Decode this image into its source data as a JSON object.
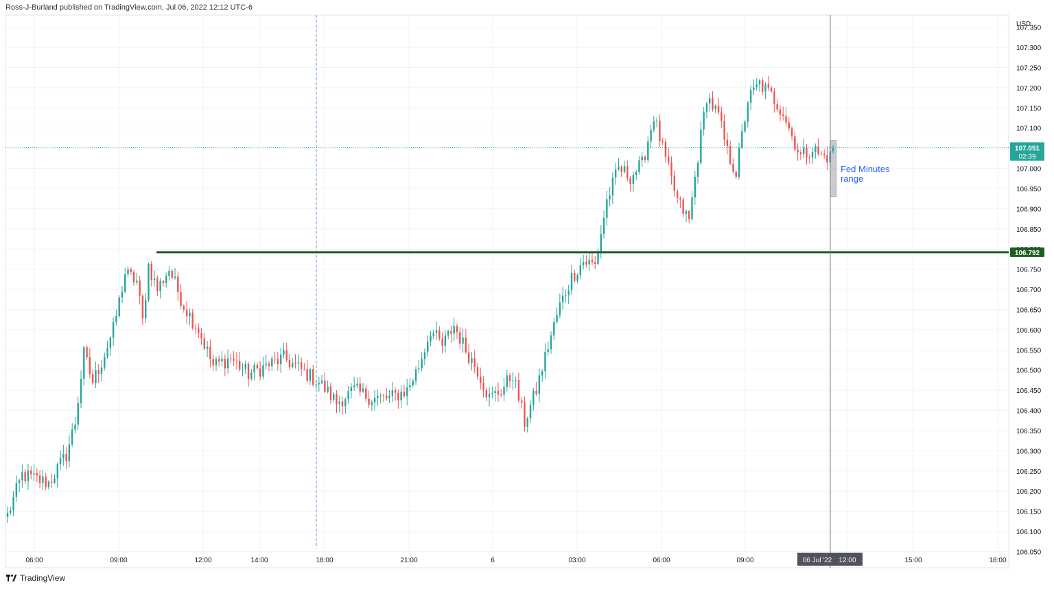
{
  "header": {
    "publisher_text": "Ross-J-Burland published on TradingView.com, Jul 06, 2022 12:12 UTC-6"
  },
  "footer": {
    "brand": "TradingView"
  },
  "colors": {
    "up": "#26a69a",
    "down": "#ef5350",
    "level_line": "#1b5e20",
    "current_price_line": "#26a69a",
    "grid": "#f0f3fa",
    "annotation_text": "#2962ff",
    "vertical_dashed": "#5b9bd5",
    "range_box": "#b2b5be",
    "crosshair": "#787b86"
  },
  "chart_data": {
    "type": "candlestick",
    "currency_label": "USD",
    "y_range": [
      106.01,
      107.38
    ],
    "y_ticks": [
      "107.350",
      "107.300",
      "107.250",
      "107.200",
      "107.150",
      "107.100",
      "107.050",
      "107.000",
      "106.950",
      "106.900",
      "106.850",
      "106.800",
      "106.750",
      "106.700",
      "106.650",
      "106.600",
      "106.550",
      "106.500",
      "106.450",
      "106.400",
      "106.350",
      "106.300",
      "106.250",
      "106.200",
      "106.150",
      "106.100",
      "106.050"
    ],
    "x_ticks": [
      "06:00",
      "09:00",
      "12:00",
      "14:00",
      "18:00",
      "21:00",
      "6",
      "03:00",
      "06:00",
      "09:00",
      "12:00",
      "15:00",
      "18:00"
    ],
    "crosshair_date_label": "06 Jul '22",
    "crosshair_time_label": "12:00",
    "current_price": {
      "value": "107.051",
      "countdown": "02:39"
    },
    "level_line": {
      "value": 106.792,
      "label": "106.792"
    },
    "annotation": {
      "line1": "Fed Minutes",
      "line2": "range",
      "range_low": 106.93,
      "range_high": 107.07
    },
    "keypoints": [
      [
        0,
        106.14
      ],
      [
        5,
        106.24
      ],
      [
        14,
        106.22
      ],
      [
        20,
        106.29
      ],
      [
        23,
        106.37
      ],
      [
        26,
        106.54
      ],
      [
        29,
        106.47
      ],
      [
        32,
        106.52
      ],
      [
        36,
        106.6
      ],
      [
        40,
        106.74
      ],
      [
        44,
        106.72
      ],
      [
        46,
        106.62
      ],
      [
        48,
        106.76
      ],
      [
        51,
        106.7
      ],
      [
        55,
        106.75
      ],
      [
        60,
        106.66
      ],
      [
        65,
        106.6
      ],
      [
        70,
        106.51
      ],
      [
        76,
        106.53
      ],
      [
        82,
        106.49
      ],
      [
        88,
        106.51
      ],
      [
        94,
        106.53
      ],
      [
        100,
        106.5
      ],
      [
        106,
        106.47
      ],
      [
        112,
        106.42
      ],
      [
        118,
        106.45
      ],
      [
        124,
        106.43
      ],
      [
        130,
        106.43
      ],
      [
        136,
        106.45
      ],
      [
        140,
        106.51
      ],
      [
        144,
        106.6
      ],
      [
        148,
        106.56
      ],
      [
        152,
        106.61
      ],
      [
        156,
        106.55
      ],
      [
        160,
        106.5
      ],
      [
        164,
        106.43
      ],
      [
        168,
        106.45
      ],
      [
        172,
        106.49
      ],
      [
        176,
        106.37
      ],
      [
        180,
        106.45
      ],
      [
        184,
        106.56
      ],
      [
        188,
        106.66
      ],
      [
        192,
        106.73
      ],
      [
        196,
        106.77
      ],
      [
        200,
        106.76
      ],
      [
        204,
        106.92
      ],
      [
        208,
        107.0
      ],
      [
        212,
        106.98
      ],
      [
        216,
        107.01
      ],
      [
        220,
        107.13
      ],
      [
        224,
        107.02
      ],
      [
        228,
        106.92
      ],
      [
        232,
        106.87
      ],
      [
        235,
        107.03
      ],
      [
        238,
        107.18
      ],
      [
        242,
        107.13
      ],
      [
        245,
        107.04
      ],
      [
        248,
        106.99
      ],
      [
        252,
        107.17
      ],
      [
        256,
        107.21
      ],
      [
        260,
        107.18
      ],
      [
        264,
        107.14
      ],
      [
        267,
        107.08
      ],
      [
        270,
        107.03
      ],
      [
        274,
        107.05
      ],
      [
        277,
        107.03
      ]
    ]
  }
}
